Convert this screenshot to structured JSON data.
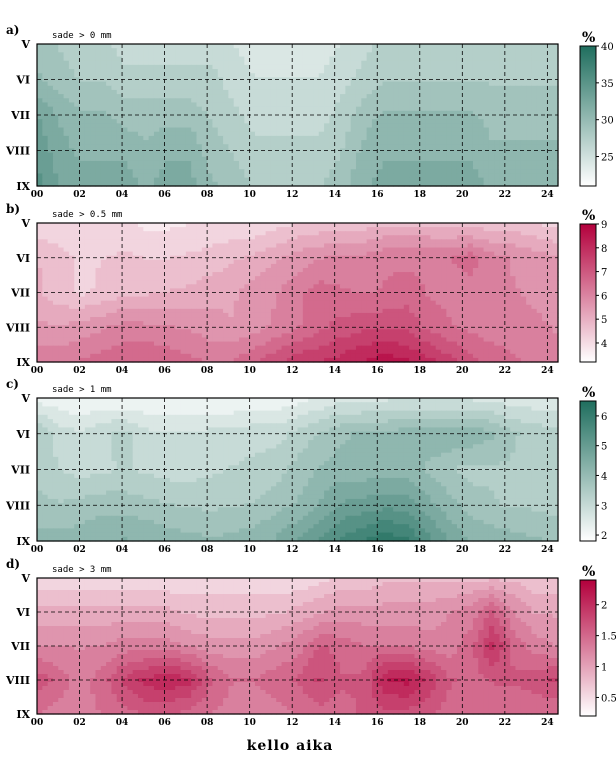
{
  "chart_data": {
    "type": "heatmap",
    "xlabel": "kello aika",
    "x_ticks": [
      "00",
      "02",
      "04",
      "06",
      "08",
      "10",
      "12",
      "14",
      "16",
      "18",
      "20",
      "22",
      "24"
    ],
    "y_ticks": [
      "V",
      "VI",
      "VII",
      "VIII",
      "IX"
    ],
    "x_range": [
      0,
      24.5
    ],
    "grid": true,
    "panels": [
      {
        "letter": "a)",
        "title": "sade > 0 mm",
        "colormap": [
          "#ffffff",
          "#1f6e5e"
        ],
        "unit": "%",
        "cb_ticks": [
          "40",
          "35",
          "30",
          "25"
        ],
        "cb_range": [
          21,
          40
        ],
        "rows": [
          [
            29,
            28,
            27,
            27,
            26,
            26,
            26,
            26,
            26,
            25,
            24,
            24,
            24,
            24,
            25,
            26,
            27,
            27,
            27,
            27,
            27,
            27,
            27,
            27,
            27
          ],
          [
            30,
            29,
            28,
            28,
            27,
            27,
            27,
            27,
            27,
            26,
            25,
            25,
            25,
            25,
            26,
            27,
            28,
            28,
            28,
            28,
            28,
            28,
            28,
            28,
            28
          ],
          [
            33,
            31,
            30,
            30,
            29,
            29,
            29,
            29,
            28,
            27,
            26,
            26,
            26,
            26,
            27,
            29,
            30,
            30,
            30,
            30,
            30,
            29,
            29,
            29,
            29
          ],
          [
            34,
            32,
            31,
            31,
            31,
            30,
            31,
            31,
            29,
            28,
            27,
            27,
            27,
            27,
            28,
            30,
            31,
            31,
            31,
            31,
            31,
            30,
            30,
            30,
            30
          ],
          [
            35,
            33,
            32,
            32,
            32,
            31,
            32,
            32,
            30,
            29,
            28,
            28,
            28,
            28,
            29,
            31,
            32,
            32,
            32,
            32,
            32,
            31,
            31,
            31,
            31
          ]
        ]
      },
      {
        "letter": "b)",
        "title": "sade > 0.5 mm",
        "colormap": [
          "#ffffff",
          "#b3003c"
        ],
        "unit": "%",
        "cb_ticks": [
          "9",
          "8",
          "7",
          "6",
          "5",
          "4"
        ],
        "cb_range": [
          3.2,
          9
        ],
        "rows": [
          [
            4.0,
            4.0,
            3.9,
            4.0,
            4.0,
            3.8,
            3.8,
            3.9,
            4.0,
            4.0,
            4.0,
            4.2,
            4.4,
            4.5,
            4.6,
            4.6,
            4.8,
            4.8,
            4.8,
            4.7,
            4.6,
            4.6,
            4.6,
            4.4,
            4.2
          ],
          [
            4.9,
            4.6,
            4.3,
            4.4,
            4.5,
            4.4,
            4.4,
            4.5,
            4.6,
            4.8,
            5.0,
            5.3,
            5.6,
            5.8,
            6.0,
            6.0,
            6.2,
            6.2,
            6.2,
            6.3,
            6.6,
            6.0,
            5.8,
            5.6,
            5.4
          ],
          [
            5.0,
            4.6,
            4.3,
            4.5,
            4.8,
            4.8,
            4.9,
            5.0,
            5.2,
            5.3,
            5.6,
            5.8,
            6.2,
            6.6,
            6.4,
            6.3,
            6.4,
            6.6,
            6.3,
            6.2,
            6.1,
            5.9,
            5.9,
            5.7,
            5.5
          ],
          [
            5.5,
            5.4,
            5.6,
            5.8,
            6.0,
            6.0,
            5.9,
            5.8,
            5.6,
            5.4,
            5.6,
            6.0,
            6.3,
            6.7,
            7.0,
            7.2,
            7.2,
            7.2,
            6.7,
            6.4,
            6.2,
            6.1,
            6.1,
            6.0,
            5.8
          ],
          [
            6.2,
            6.2,
            6.4,
            6.6,
            6.8,
            6.8,
            6.7,
            6.5,
            6.3,
            6.4,
            6.8,
            7.2,
            7.6,
            7.8,
            8.0,
            8.3,
            8.6,
            8.4,
            8.0,
            7.5,
            7.0,
            6.6,
            6.4,
            6.2,
            6.0
          ]
        ]
      },
      {
        "letter": "c)",
        "title": "sade > 1 mm",
        "colormap": [
          "#ffffff",
          "#1f6e5e"
        ],
        "unit": "%",
        "cb_ticks": [
          "6",
          "5",
          "4",
          "3",
          "2"
        ],
        "cb_range": [
          1.8,
          6.5
        ],
        "rows": [
          [
            2.2,
            2.1,
            2.0,
            2.0,
            2.0,
            2.0,
            2.0,
            2.0,
            2.0,
            2.0,
            2.1,
            2.1,
            2.2,
            2.4,
            2.6,
            2.6,
            2.7,
            2.7,
            2.7,
            2.7,
            2.7,
            2.6,
            2.5,
            2.5,
            2.4
          ],
          [
            3.6,
            3.0,
            2.8,
            3.1,
            3.3,
            2.9,
            2.8,
            2.8,
            2.9,
            2.9,
            3.0,
            3.0,
            3.3,
            3.6,
            3.9,
            4.0,
            4.0,
            4.2,
            4.2,
            4.3,
            4.3,
            4.0,
            3.6,
            3.4,
            3.3
          ],
          [
            3.4,
            3.2,
            3.0,
            3.1,
            3.2,
            3.1,
            3.0,
            3.0,
            3.1,
            3.2,
            3.3,
            3.4,
            3.7,
            4.0,
            4.1,
            4.1,
            4.2,
            4.2,
            3.9,
            3.6,
            3.4,
            3.5,
            3.5,
            3.4,
            3.3
          ],
          [
            3.7,
            3.6,
            3.7,
            3.8,
            3.8,
            3.7,
            3.6,
            3.5,
            3.5,
            3.5,
            3.6,
            3.8,
            4.0,
            4.4,
            4.8,
            4.9,
            5.0,
            5.0,
            4.5,
            4.1,
            3.8,
            3.6,
            3.5,
            3.5,
            3.4
          ],
          [
            4.1,
            4.1,
            4.2,
            4.3,
            4.4,
            4.3,
            4.2,
            4.1,
            4.0,
            4.1,
            4.2,
            4.4,
            4.8,
            5.2,
            5.6,
            5.9,
            6.2,
            6.0,
            5.3,
            4.7,
            4.3,
            4.2,
            4.1,
            4.0,
            3.9
          ]
        ]
      },
      {
        "letter": "d)",
        "title": "sade > 3 mm",
        "colormap": [
          "#ffffff",
          "#b3003c"
        ],
        "unit": "%",
        "cb_ticks": [
          "2",
          "1.5",
          "1",
          "0.5"
        ],
        "cb_range": [
          0.2,
          2.4
        ],
        "rows": [
          [
            0.5,
            0.5,
            0.5,
            0.5,
            0.5,
            0.5,
            0.5,
            0.5,
            0.5,
            0.5,
            0.5,
            0.5,
            0.5,
            0.6,
            0.7,
            0.7,
            0.8,
            0.8,
            0.8,
            0.8,
            0.8,
            0.8,
            0.8,
            0.7,
            0.7
          ],
          [
            0.9,
            0.9,
            0.9,
            0.9,
            0.9,
            0.9,
            0.9,
            0.8,
            0.8,
            0.8,
            0.8,
            0.8,
            0.9,
            1.0,
            1.1,
            1.1,
            1.1,
            1.1,
            1.1,
            1.2,
            1.3,
            1.6,
            1.2,
            1.0,
            1.0
          ],
          [
            1.2,
            1.2,
            1.2,
            1.2,
            1.3,
            1.3,
            1.3,
            1.2,
            1.1,
            1.1,
            1.1,
            1.2,
            1.3,
            1.6,
            1.5,
            1.4,
            1.4,
            1.4,
            1.3,
            1.3,
            1.5,
            2.0,
            1.5,
            1.3,
            1.2
          ],
          [
            1.7,
            1.5,
            1.3,
            1.5,
            1.8,
            2.0,
            2.1,
            2.0,
            1.6,
            1.4,
            1.4,
            1.5,
            1.6,
            1.8,
            1.6,
            1.6,
            2.1,
            2.2,
            1.9,
            1.6,
            1.5,
            1.6,
            1.6,
            1.7,
            1.8
          ],
          [
            1.4,
            1.3,
            1.3,
            1.4,
            1.5,
            1.6,
            1.6,
            1.5,
            1.4,
            1.3,
            1.3,
            1.3,
            1.4,
            1.5,
            1.5,
            1.6,
            1.7,
            1.7,
            1.6,
            1.5,
            1.4,
            1.4,
            1.4,
            1.4,
            1.4
          ]
        ]
      }
    ]
  }
}
